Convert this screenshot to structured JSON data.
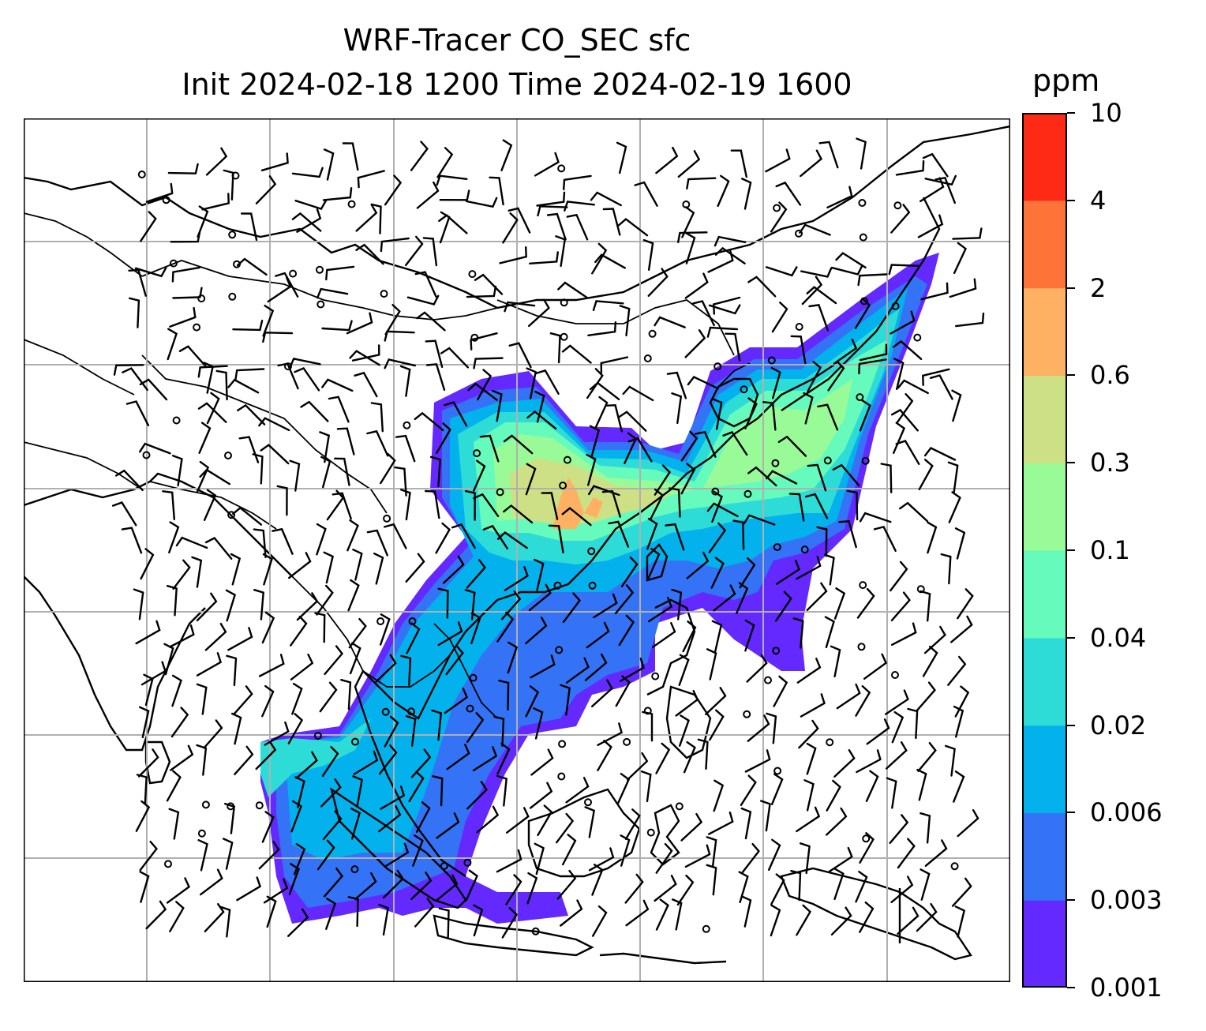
{
  "title_line1": "WRF-Tracer CO_SEC sfc",
  "title_line2": "Init 2024-02-18 1200 Time 2024-02-19 1600",
  "colorbar": {
    "units": "ppm",
    "levels": [
      "0.001",
      "0.003",
      "0.006",
      "0.02",
      "0.04",
      "0.1",
      "0.3",
      "0.6",
      "2",
      "4",
      "10"
    ],
    "colors": [
      "#6329ff",
      "#3473f5",
      "#03b2ec",
      "#2edcd7",
      "#66fbbc",
      "#99fb98",
      "#cde085",
      "#feb163",
      "#fd7338",
      "#fe2a16"
    ]
  },
  "map": {
    "region": "East and Southeast Asia",
    "variable": "CO_SEC surface tracer concentration with wind barbs",
    "gridlines": true,
    "plume_colors": {
      "deep": "#6329ff",
      "low": "#3473f5",
      "mid": "#03b2ec",
      "mid2": "#2edcd7",
      "high": "#66fbbc",
      "higher": "#99fb98",
      "peak": "#cde085",
      "max": "#feb163"
    }
  }
}
